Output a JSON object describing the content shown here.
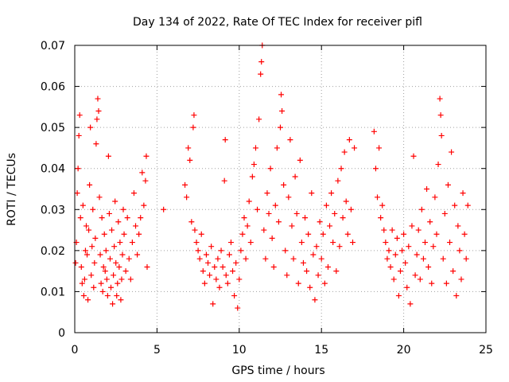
{
  "chart_data": {
    "type": "scatter",
    "title": "Day 134 of 2022, Rate Of TEC Index for receiver pifl",
    "xlabel": "GPS time / hours",
    "ylabel": "ROTI / TECUs",
    "xlim": [
      0,
      25
    ],
    "ylim": [
      0,
      0.07
    ],
    "xticks": [
      0,
      5,
      10,
      15,
      20,
      25
    ],
    "xtick_labels": [
      "0",
      "5",
      "10",
      "15",
      "20",
      "25"
    ],
    "yticks": [
      0,
      0.01,
      0.02,
      0.03,
      0.04,
      0.05,
      0.06,
      0.07
    ],
    "ytick_labels": [
      "0",
      "0.01",
      "0.02",
      "0.03",
      "0.04",
      "0.05",
      "0.06",
      "0.07"
    ],
    "grid": true,
    "marker": "+",
    "marker_color": "#ff0000",
    "series": [
      {
        "name": "ROTI",
        "points": [
          [
            0.05,
            0.017
          ],
          [
            0.1,
            0.022
          ],
          [
            0.15,
            0.034
          ],
          [
            0.2,
            0.04
          ],
          [
            0.25,
            0.048
          ],
          [
            0.3,
            0.053
          ],
          [
            0.35,
            0.028
          ],
          [
            0.4,
            0.016
          ],
          [
            0.45,
            0.012
          ],
          [
            0.5,
            0.031
          ],
          [
            0.55,
            0.009
          ],
          [
            0.6,
            0.013
          ],
          [
            0.65,
            0.02
          ],
          [
            0.7,
            0.026
          ],
          [
            0.75,
            0.019
          ],
          [
            0.8,
            0.008
          ],
          [
            0.85,
            0.025
          ],
          [
            0.9,
            0.036
          ],
          [
            0.95,
            0.05
          ],
          [
            1.0,
            0.014
          ],
          [
            1.05,
            0.021
          ],
          [
            1.1,
            0.03
          ],
          [
            1.15,
            0.011
          ],
          [
            1.2,
            0.017
          ],
          [
            1.25,
            0.023
          ],
          [
            1.3,
            0.046
          ],
          [
            1.35,
            0.052
          ],
          [
            1.4,
            0.057
          ],
          [
            1.45,
            0.054
          ],
          [
            1.5,
            0.033
          ],
          [
            1.55,
            0.019
          ],
          [
            1.6,
            0.012
          ],
          [
            1.65,
            0.028
          ],
          [
            1.7,
            0.01
          ],
          [
            1.75,
            0.016
          ],
          [
            1.8,
            0.024
          ],
          [
            1.85,
            0.015
          ],
          [
            1.9,
            0.02
          ],
          [
            1.95,
            0.013
          ],
          [
            2.0,
            0.009
          ],
          [
            2.05,
            0.043
          ],
          [
            2.1,
            0.029
          ],
          [
            2.15,
            0.018
          ],
          [
            2.2,
            0.011
          ],
          [
            2.25,
            0.025
          ],
          [
            2.3,
            0.007
          ],
          [
            2.35,
            0.014
          ],
          [
            2.4,
            0.021
          ],
          [
            2.45,
            0.032
          ],
          [
            2.5,
            0.017
          ],
          [
            2.55,
            0.009
          ],
          [
            2.6,
            0.012
          ],
          [
            2.65,
            0.027
          ],
          [
            2.7,
            0.016
          ],
          [
            2.75,
            0.022
          ],
          [
            2.8,
            0.008
          ],
          [
            2.85,
            0.013
          ],
          [
            2.9,
            0.019
          ],
          [
            2.95,
            0.03
          ],
          [
            3.0,
            0.024
          ],
          [
            3.1,
            0.015
          ],
          [
            3.2,
            0.028
          ],
          [
            3.3,
            0.018
          ],
          [
            3.4,
            0.013
          ],
          [
            3.5,
            0.022
          ],
          [
            3.6,
            0.034
          ],
          [
            3.7,
            0.026
          ],
          [
            3.8,
            0.019
          ],
          [
            3.9,
            0.024
          ],
          [
            4.0,
            0.028
          ],
          [
            4.1,
            0.039
          ],
          [
            4.2,
            0.031
          ],
          [
            4.3,
            0.037
          ],
          [
            4.35,
            0.043
          ],
          [
            4.4,
            0.016
          ],
          [
            5.4,
            0.03
          ],
          [
            6.7,
            0.036
          ],
          [
            6.8,
            0.033
          ],
          [
            6.9,
            0.045
          ],
          [
            7.0,
            0.042
          ],
          [
            7.1,
            0.027
          ],
          [
            7.2,
            0.05
          ],
          [
            7.25,
            0.053
          ],
          [
            7.3,
            0.025
          ],
          [
            7.4,
            0.022
          ],
          [
            7.5,
            0.02
          ],
          [
            7.6,
            0.018
          ],
          [
            7.7,
            0.024
          ],
          [
            7.8,
            0.015
          ],
          [
            7.9,
            0.012
          ],
          [
            8.0,
            0.019
          ],
          [
            8.1,
            0.017
          ],
          [
            8.2,
            0.014
          ],
          [
            8.3,
            0.021
          ],
          [
            8.4,
            0.007
          ],
          [
            8.5,
            0.016
          ],
          [
            8.6,
            0.013
          ],
          [
            8.7,
            0.018
          ],
          [
            8.8,
            0.011
          ],
          [
            8.9,
            0.02
          ],
          [
            9.0,
            0.016
          ],
          [
            9.1,
            0.037
          ],
          [
            9.15,
            0.047
          ],
          [
            9.2,
            0.014
          ],
          [
            9.3,
            0.012
          ],
          [
            9.4,
            0.019
          ],
          [
            9.5,
            0.022
          ],
          [
            9.6,
            0.015
          ],
          [
            9.7,
            0.009
          ],
          [
            9.8,
            0.017
          ],
          [
            9.9,
            0.006
          ],
          [
            10.0,
            0.013
          ],
          [
            10.1,
            0.02
          ],
          [
            10.2,
            0.024
          ],
          [
            10.3,
            0.028
          ],
          [
            10.4,
            0.018
          ],
          [
            10.5,
            0.026
          ],
          [
            10.6,
            0.032
          ],
          [
            10.7,
            0.022
          ],
          [
            10.8,
            0.038
          ],
          [
            10.9,
            0.041
          ],
          [
            11.0,
            0.045
          ],
          [
            11.1,
            0.03
          ],
          [
            11.2,
            0.052
          ],
          [
            11.3,
            0.063
          ],
          [
            11.35,
            0.066
          ],
          [
            11.4,
            0.07
          ],
          [
            11.5,
            0.025
          ],
          [
            11.6,
            0.018
          ],
          [
            11.7,
            0.034
          ],
          [
            11.8,
            0.029
          ],
          [
            11.9,
            0.04
          ],
          [
            12.0,
            0.023
          ],
          [
            12.1,
            0.016
          ],
          [
            12.2,
            0.031
          ],
          [
            12.3,
            0.045
          ],
          [
            12.4,
            0.027
          ],
          [
            12.5,
            0.05
          ],
          [
            12.55,
            0.058
          ],
          [
            12.6,
            0.054
          ],
          [
            12.7,
            0.036
          ],
          [
            12.8,
            0.02
          ],
          [
            12.9,
            0.014
          ],
          [
            13.0,
            0.033
          ],
          [
            13.1,
            0.047
          ],
          [
            13.2,
            0.026
          ],
          [
            13.3,
            0.018
          ],
          [
            13.4,
            0.038
          ],
          [
            13.5,
            0.029
          ],
          [
            13.6,
            0.012
          ],
          [
            13.7,
            0.042
          ],
          [
            13.8,
            0.022
          ],
          [
            13.9,
            0.017
          ],
          [
            14.0,
            0.028
          ],
          [
            14.1,
            0.015
          ],
          [
            14.2,
            0.024
          ],
          [
            14.3,
            0.011
          ],
          [
            14.4,
            0.034
          ],
          [
            14.5,
            0.019
          ],
          [
            14.6,
            0.008
          ],
          [
            14.7,
            0.021
          ],
          [
            14.8,
            0.014
          ],
          [
            14.9,
            0.027
          ],
          [
            15.0,
            0.018
          ],
          [
            15.1,
            0.024
          ],
          [
            15.2,
            0.012
          ],
          [
            15.3,
            0.031
          ],
          [
            15.4,
            0.016
          ],
          [
            15.5,
            0.026
          ],
          [
            15.6,
            0.034
          ],
          [
            15.7,
            0.022
          ],
          [
            15.8,
            0.029
          ],
          [
            15.9,
            0.015
          ],
          [
            16.0,
            0.037
          ],
          [
            16.1,
            0.021
          ],
          [
            16.2,
            0.04
          ],
          [
            16.3,
            0.028
          ],
          [
            16.4,
            0.044
          ],
          [
            16.5,
            0.032
          ],
          [
            16.6,
            0.024
          ],
          [
            16.7,
            0.047
          ],
          [
            16.8,
            0.03
          ],
          [
            16.9,
            0.022
          ],
          [
            17.0,
            0.045
          ],
          [
            18.2,
            0.049
          ],
          [
            18.3,
            0.04
          ],
          [
            18.4,
            0.033
          ],
          [
            18.5,
            0.045
          ],
          [
            18.6,
            0.028
          ],
          [
            18.7,
            0.031
          ],
          [
            18.8,
            0.025
          ],
          [
            18.9,
            0.022
          ],
          [
            19.0,
            0.018
          ],
          [
            19.1,
            0.02
          ],
          [
            19.2,
            0.016
          ],
          [
            19.3,
            0.025
          ],
          [
            19.4,
            0.013
          ],
          [
            19.5,
            0.019
          ],
          [
            19.6,
            0.023
          ],
          [
            19.7,
            0.009
          ],
          [
            19.8,
            0.015
          ],
          [
            19.9,
            0.02
          ],
          [
            20.0,
            0.024
          ],
          [
            20.1,
            0.017
          ],
          [
            20.2,
            0.011
          ],
          [
            20.3,
            0.021
          ],
          [
            20.4,
            0.007
          ],
          [
            20.5,
            0.026
          ],
          [
            20.6,
            0.043
          ],
          [
            20.7,
            0.014
          ],
          [
            20.8,
            0.019
          ],
          [
            20.9,
            0.025
          ],
          [
            21.0,
            0.013
          ],
          [
            21.1,
            0.03
          ],
          [
            21.2,
            0.018
          ],
          [
            21.3,
            0.022
          ],
          [
            21.4,
            0.035
          ],
          [
            21.5,
            0.016
          ],
          [
            21.6,
            0.027
          ],
          [
            21.7,
            0.012
          ],
          [
            21.8,
            0.021
          ],
          [
            21.9,
            0.033
          ],
          [
            22.0,
            0.024
          ],
          [
            22.1,
            0.041
          ],
          [
            22.2,
            0.057
          ],
          [
            22.25,
            0.053
          ],
          [
            22.3,
            0.048
          ],
          [
            22.4,
            0.018
          ],
          [
            22.5,
            0.029
          ],
          [
            22.6,
            0.012
          ],
          [
            22.7,
            0.036
          ],
          [
            22.8,
            0.022
          ],
          [
            22.9,
            0.044
          ],
          [
            23.0,
            0.015
          ],
          [
            23.1,
            0.031
          ],
          [
            23.2,
            0.009
          ],
          [
            23.3,
            0.026
          ],
          [
            23.4,
            0.02
          ],
          [
            23.5,
            0.013
          ],
          [
            23.6,
            0.034
          ],
          [
            23.7,
            0.024
          ],
          [
            23.8,
            0.018
          ],
          [
            23.9,
            0.031
          ]
        ]
      }
    ]
  }
}
